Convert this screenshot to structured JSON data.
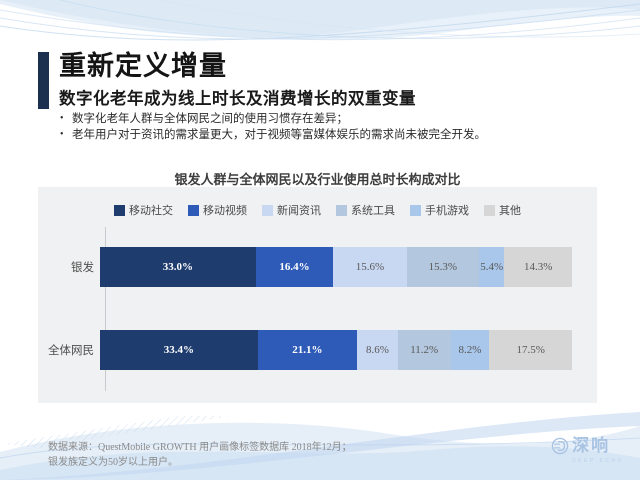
{
  "slide": {
    "title": "重新定义增量",
    "subtitle": "数字化老年成为线上时长及消费增长的双重变量",
    "bullets": [
      "数字化老年人群与全体网民之间的使用习惯存在差异；",
      "老年用户对于资讯的需求量更大，对于视频等富媒体娱乐的需求尚未被完全开发。"
    ],
    "source_line1": "数据来源：QuestMobile GROWTH 用户画像标签数据库 2018年12月；",
    "source_line2": "银发族定义为50岁以上用户。",
    "logo": {
      "text": "深响",
      "subtext": "DEEP ECHO"
    },
    "accent_color": "#1b2f4e"
  },
  "chart_data": {
    "type": "bar",
    "stacked": true,
    "orientation": "horizontal",
    "title": "银发人群与全体网民以及行业使用总时长构成对比",
    "categories": [
      "银发",
      "全体网民"
    ],
    "series": [
      {
        "name": "移动社交",
        "color": "#1e3c6e",
        "label_color": "#ffffff",
        "values": [
          33.0,
          33.4
        ]
      },
      {
        "name": "移动视频",
        "color": "#2e5bb7",
        "label_color": "#ffffff",
        "values": [
          16.4,
          21.1
        ]
      },
      {
        "name": "新闻资讯",
        "color": "#c9d8f2",
        "label_color": "#595959",
        "values": [
          15.6,
          8.6
        ]
      },
      {
        "name": "系统工具",
        "color": "#b3c7de",
        "label_color": "#595959",
        "values": [
          15.3,
          11.2
        ]
      },
      {
        "name": "手机游戏",
        "color": "#a9c7ea",
        "label_color": "#595959",
        "values": [
          5.4,
          8.2
        ]
      },
      {
        "name": "其他",
        "color": "#d6d6d6",
        "label_color": "#595959",
        "values": [
          14.3,
          17.5
        ]
      }
    ],
    "value_suffix": "%",
    "xlim": [
      0,
      100
    ],
    "legend_position": "top",
    "grid": false
  }
}
